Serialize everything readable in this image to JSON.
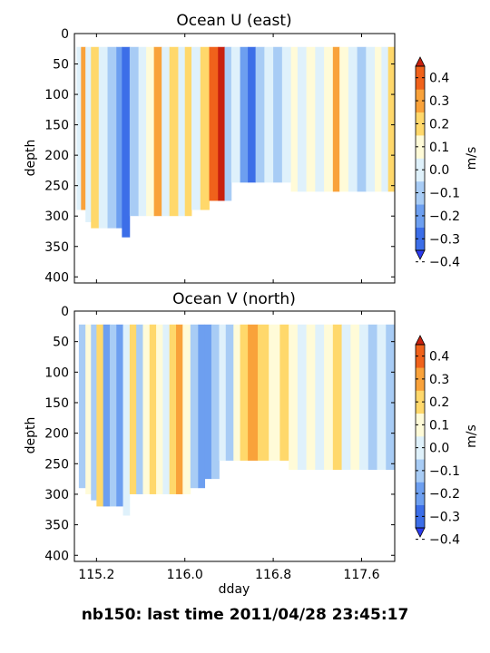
{
  "caption": "nb150: last time 2011/04/28 23:45:17",
  "colors": {
    "levels": [
      -0.4,
      -0.3,
      -0.2,
      -0.1,
      0.0,
      0.1,
      0.2,
      0.3,
      0.4
    ],
    "bins": [
      "#2b3bf0",
      "#3c6ee8",
      "#6d9ff0",
      "#a8ccf5",
      "#dff1fb",
      "#fffbd8",
      "#ffd86b",
      "#f9a23a",
      "#f0621b",
      "#c8200e"
    ]
  },
  "chart_data": [
    {
      "type": "heatmap",
      "title": "Ocean U (east)",
      "xlabel": "",
      "ylabel": "depth",
      "xlim": [
        115.0,
        117.9
      ],
      "ylim": [
        410,
        0
      ],
      "xticks": [
        "",
        "",
        "",
        ""
      ],
      "yticks": [
        "0",
        "50",
        "100",
        "150",
        "200",
        "250",
        "300",
        "350",
        "400"
      ],
      "colorbar": {
        "label": "m/s",
        "ticks": [
          "0.4",
          "0.3",
          "0.2",
          "0.1",
          "0.0",
          "−0.1",
          "−0.2",
          "−0.3",
          "−0.4"
        ]
      },
      "columns": [
        {
          "x0": 115.0,
          "x1": 115.02,
          "value": 0.0,
          "bottom": 0
        },
        {
          "x0": 115.02,
          "x1": 115.06,
          "value": -0.1,
          "bottom": 290
        },
        {
          "x0": 115.06,
          "x1": 115.1,
          "value": 0.25,
          "bottom": 290
        },
        {
          "x0": 115.1,
          "x1": 115.15,
          "value": -0.05,
          "bottom": 310
        },
        {
          "x0": 115.15,
          "x1": 115.22,
          "value": 0.12,
          "bottom": 320
        },
        {
          "x0": 115.22,
          "x1": 115.3,
          "value": -0.05,
          "bottom": 320
        },
        {
          "x0": 115.3,
          "x1": 115.38,
          "value": -0.15,
          "bottom": 320
        },
        {
          "x0": 115.38,
          "x1": 115.43,
          "value": -0.25,
          "bottom": 320
        },
        {
          "x0": 115.43,
          "x1": 115.5,
          "value": -0.35,
          "bottom": 335
        },
        {
          "x0": 115.5,
          "x1": 115.58,
          "value": -0.15,
          "bottom": 300
        },
        {
          "x0": 115.58,
          "x1": 115.65,
          "value": -0.05,
          "bottom": 300
        },
        {
          "x0": 115.65,
          "x1": 115.72,
          "value": 0.05,
          "bottom": 300
        },
        {
          "x0": 115.72,
          "x1": 115.79,
          "value": 0.22,
          "bottom": 300
        },
        {
          "x0": 115.79,
          "x1": 115.86,
          "value": -0.02,
          "bottom": 300
        },
        {
          "x0": 115.86,
          "x1": 115.94,
          "value": 0.15,
          "bottom": 300
        },
        {
          "x0": 115.94,
          "x1": 116.0,
          "value": -0.05,
          "bottom": 300
        },
        {
          "x0": 116.0,
          "x1": 116.06,
          "value": 0.12,
          "bottom": 300
        },
        {
          "x0": 116.06,
          "x1": 116.14,
          "value": -0.08,
          "bottom": 290
        },
        {
          "x0": 116.14,
          "x1": 116.22,
          "value": 0.18,
          "bottom": 290
        },
        {
          "x0": 116.22,
          "x1": 116.3,
          "value": 0.35,
          "bottom": 275
        },
        {
          "x0": 116.3,
          "x1": 116.36,
          "value": 0.45,
          "bottom": 275
        },
        {
          "x0": 116.36,
          "x1": 116.42,
          "value": -0.15,
          "bottom": 275
        },
        {
          "x0": 116.42,
          "x1": 116.5,
          "value": -0.05,
          "bottom": 245
        },
        {
          "x0": 116.5,
          "x1": 116.57,
          "value": -0.25,
          "bottom": 245
        },
        {
          "x0": 116.57,
          "x1": 116.64,
          "value": -0.35,
          "bottom": 245
        },
        {
          "x0": 116.64,
          "x1": 116.72,
          "value": -0.15,
          "bottom": 245
        },
        {
          "x0": 116.72,
          "x1": 116.8,
          "value": -0.05,
          "bottom": 245
        },
        {
          "x0": 116.8,
          "x1": 116.88,
          "value": -0.15,
          "bottom": 245
        },
        {
          "x0": 116.88,
          "x1": 116.96,
          "value": -0.05,
          "bottom": 245
        },
        {
          "x0": 116.96,
          "x1": 117.02,
          "value": 0.05,
          "bottom": 260
        },
        {
          "x0": 117.02,
          "x1": 117.1,
          "value": -0.05,
          "bottom": 260
        },
        {
          "x0": 117.1,
          "x1": 117.18,
          "value": 0.05,
          "bottom": 260
        },
        {
          "x0": 117.18,
          "x1": 117.26,
          "value": -0.05,
          "bottom": 260
        },
        {
          "x0": 117.26,
          "x1": 117.34,
          "value": 0.05,
          "bottom": 260
        },
        {
          "x0": 117.34,
          "x1": 117.4,
          "value": 0.22,
          "bottom": 260
        },
        {
          "x0": 117.4,
          "x1": 117.48,
          "value": 0.05,
          "bottom": 260
        },
        {
          "x0": 117.48,
          "x1": 117.56,
          "value": -0.05,
          "bottom": 260
        },
        {
          "x0": 117.56,
          "x1": 117.64,
          "value": -0.12,
          "bottom": 260
        },
        {
          "x0": 117.64,
          "x1": 117.72,
          "value": -0.05,
          "bottom": 260
        },
        {
          "x0": 117.72,
          "x1": 117.78,
          "value": 0.05,
          "bottom": 260
        },
        {
          "x0": 117.78,
          "x1": 117.84,
          "value": -0.05,
          "bottom": 260
        },
        {
          "x0": 117.84,
          "x1": 117.9,
          "value": 0.15,
          "bottom": 260
        }
      ]
    },
    {
      "type": "heatmap",
      "title": "Ocean V (north)",
      "xlabel": "dday",
      "ylabel": "depth",
      "xlim": [
        115.0,
        117.9
      ],
      "ylim": [
        410,
        0
      ],
      "xticks": [
        "115.2",
        "116.0",
        "116.8",
        "117.6"
      ],
      "xtick_values": [
        115.2,
        116.0,
        116.8,
        117.6
      ],
      "yticks": [
        "0",
        "50",
        "100",
        "150",
        "200",
        "250",
        "300",
        "350",
        "400"
      ],
      "colorbar": {
        "label": "m/s",
        "ticks": [
          "0.4",
          "0.3",
          "0.2",
          "0.1",
          "0.0",
          "−0.1",
          "−0.2",
          "−0.3",
          "−0.4"
        ]
      },
      "columns": [
        {
          "x0": 115.0,
          "x1": 115.04,
          "value": -0.05,
          "bottom": 0
        },
        {
          "x0": 115.04,
          "x1": 115.1,
          "value": -0.15,
          "bottom": 290
        },
        {
          "x0": 115.1,
          "x1": 115.15,
          "value": 0.05,
          "bottom": 300
        },
        {
          "x0": 115.15,
          "x1": 115.2,
          "value": -0.15,
          "bottom": 310
        },
        {
          "x0": 115.2,
          "x1": 115.26,
          "value": 0.15,
          "bottom": 320
        },
        {
          "x0": 115.26,
          "x1": 115.32,
          "value": -0.25,
          "bottom": 320
        },
        {
          "x0": 115.32,
          "x1": 115.38,
          "value": -0.15,
          "bottom": 320
        },
        {
          "x0": 115.38,
          "x1": 115.44,
          "value": -0.25,
          "bottom": 320
        },
        {
          "x0": 115.44,
          "x1": 115.5,
          "value": -0.05,
          "bottom": 335
        },
        {
          "x0": 115.5,
          "x1": 115.56,
          "value": 0.15,
          "bottom": 300
        },
        {
          "x0": 115.56,
          "x1": 115.62,
          "value": -0.15,
          "bottom": 300
        },
        {
          "x0": 115.62,
          "x1": 115.68,
          "value": 0.05,
          "bottom": 300
        },
        {
          "x0": 115.68,
          "x1": 115.74,
          "value": 0.15,
          "bottom": 300
        },
        {
          "x0": 115.74,
          "x1": 115.8,
          "value": 0.05,
          "bottom": 300
        },
        {
          "x0": 115.8,
          "x1": 115.86,
          "value": -0.05,
          "bottom": 300
        },
        {
          "x0": 115.86,
          "x1": 115.92,
          "value": 0.15,
          "bottom": 300
        },
        {
          "x0": 115.92,
          "x1": 115.98,
          "value": 0.2,
          "bottom": 300
        },
        {
          "x0": 115.98,
          "x1": 116.05,
          "value": 0.05,
          "bottom": 300
        },
        {
          "x0": 116.05,
          "x1": 116.12,
          "value": -0.15,
          "bottom": 290
        },
        {
          "x0": 116.12,
          "x1": 116.18,
          "value": -0.25,
          "bottom": 290
        },
        {
          "x0": 116.18,
          "x1": 116.24,
          "value": -0.3,
          "bottom": 275
        },
        {
          "x0": 116.24,
          "x1": 116.31,
          "value": -0.2,
          "bottom": 275
        },
        {
          "x0": 116.31,
          "x1": 116.37,
          "value": -0.1,
          "bottom": 245
        },
        {
          "x0": 116.37,
          "x1": 116.44,
          "value": -0.2,
          "bottom": 245
        },
        {
          "x0": 116.44,
          "x1": 116.5,
          "value": 0.05,
          "bottom": 245
        },
        {
          "x0": 116.5,
          "x1": 116.57,
          "value": 0.15,
          "bottom": 245
        },
        {
          "x0": 116.57,
          "x1": 116.66,
          "value": 0.2,
          "bottom": 245
        },
        {
          "x0": 116.66,
          "x1": 116.76,
          "value": 0.15,
          "bottom": 245
        },
        {
          "x0": 116.76,
          "x1": 116.86,
          "value": 0.05,
          "bottom": 245
        },
        {
          "x0": 116.86,
          "x1": 116.94,
          "value": 0.15,
          "bottom": 245
        },
        {
          "x0": 116.94,
          "x1": 117.02,
          "value": 0.05,
          "bottom": 260
        },
        {
          "x0": 117.02,
          "x1": 117.1,
          "value": -0.05,
          "bottom": 260
        },
        {
          "x0": 117.1,
          "x1": 117.18,
          "value": 0.05,
          "bottom": 260
        },
        {
          "x0": 117.18,
          "x1": 117.26,
          "value": -0.05,
          "bottom": 260
        },
        {
          "x0": 117.26,
          "x1": 117.34,
          "value": 0.05,
          "bottom": 260
        },
        {
          "x0": 117.34,
          "x1": 117.42,
          "value": 0.15,
          "bottom": 260
        },
        {
          "x0": 117.42,
          "x1": 117.5,
          "value": -0.05,
          "bottom": 260
        },
        {
          "x0": 117.5,
          "x1": 117.58,
          "value": 0.05,
          "bottom": 260
        },
        {
          "x0": 117.58,
          "x1": 117.66,
          "value": -0.05,
          "bottom": 260
        },
        {
          "x0": 117.66,
          "x1": 117.74,
          "value": -0.15,
          "bottom": 260
        },
        {
          "x0": 117.74,
          "x1": 117.82,
          "value": -0.05,
          "bottom": 260
        },
        {
          "x0": 117.82,
          "x1": 117.9,
          "value": -0.15,
          "bottom": 260
        }
      ]
    }
  ]
}
